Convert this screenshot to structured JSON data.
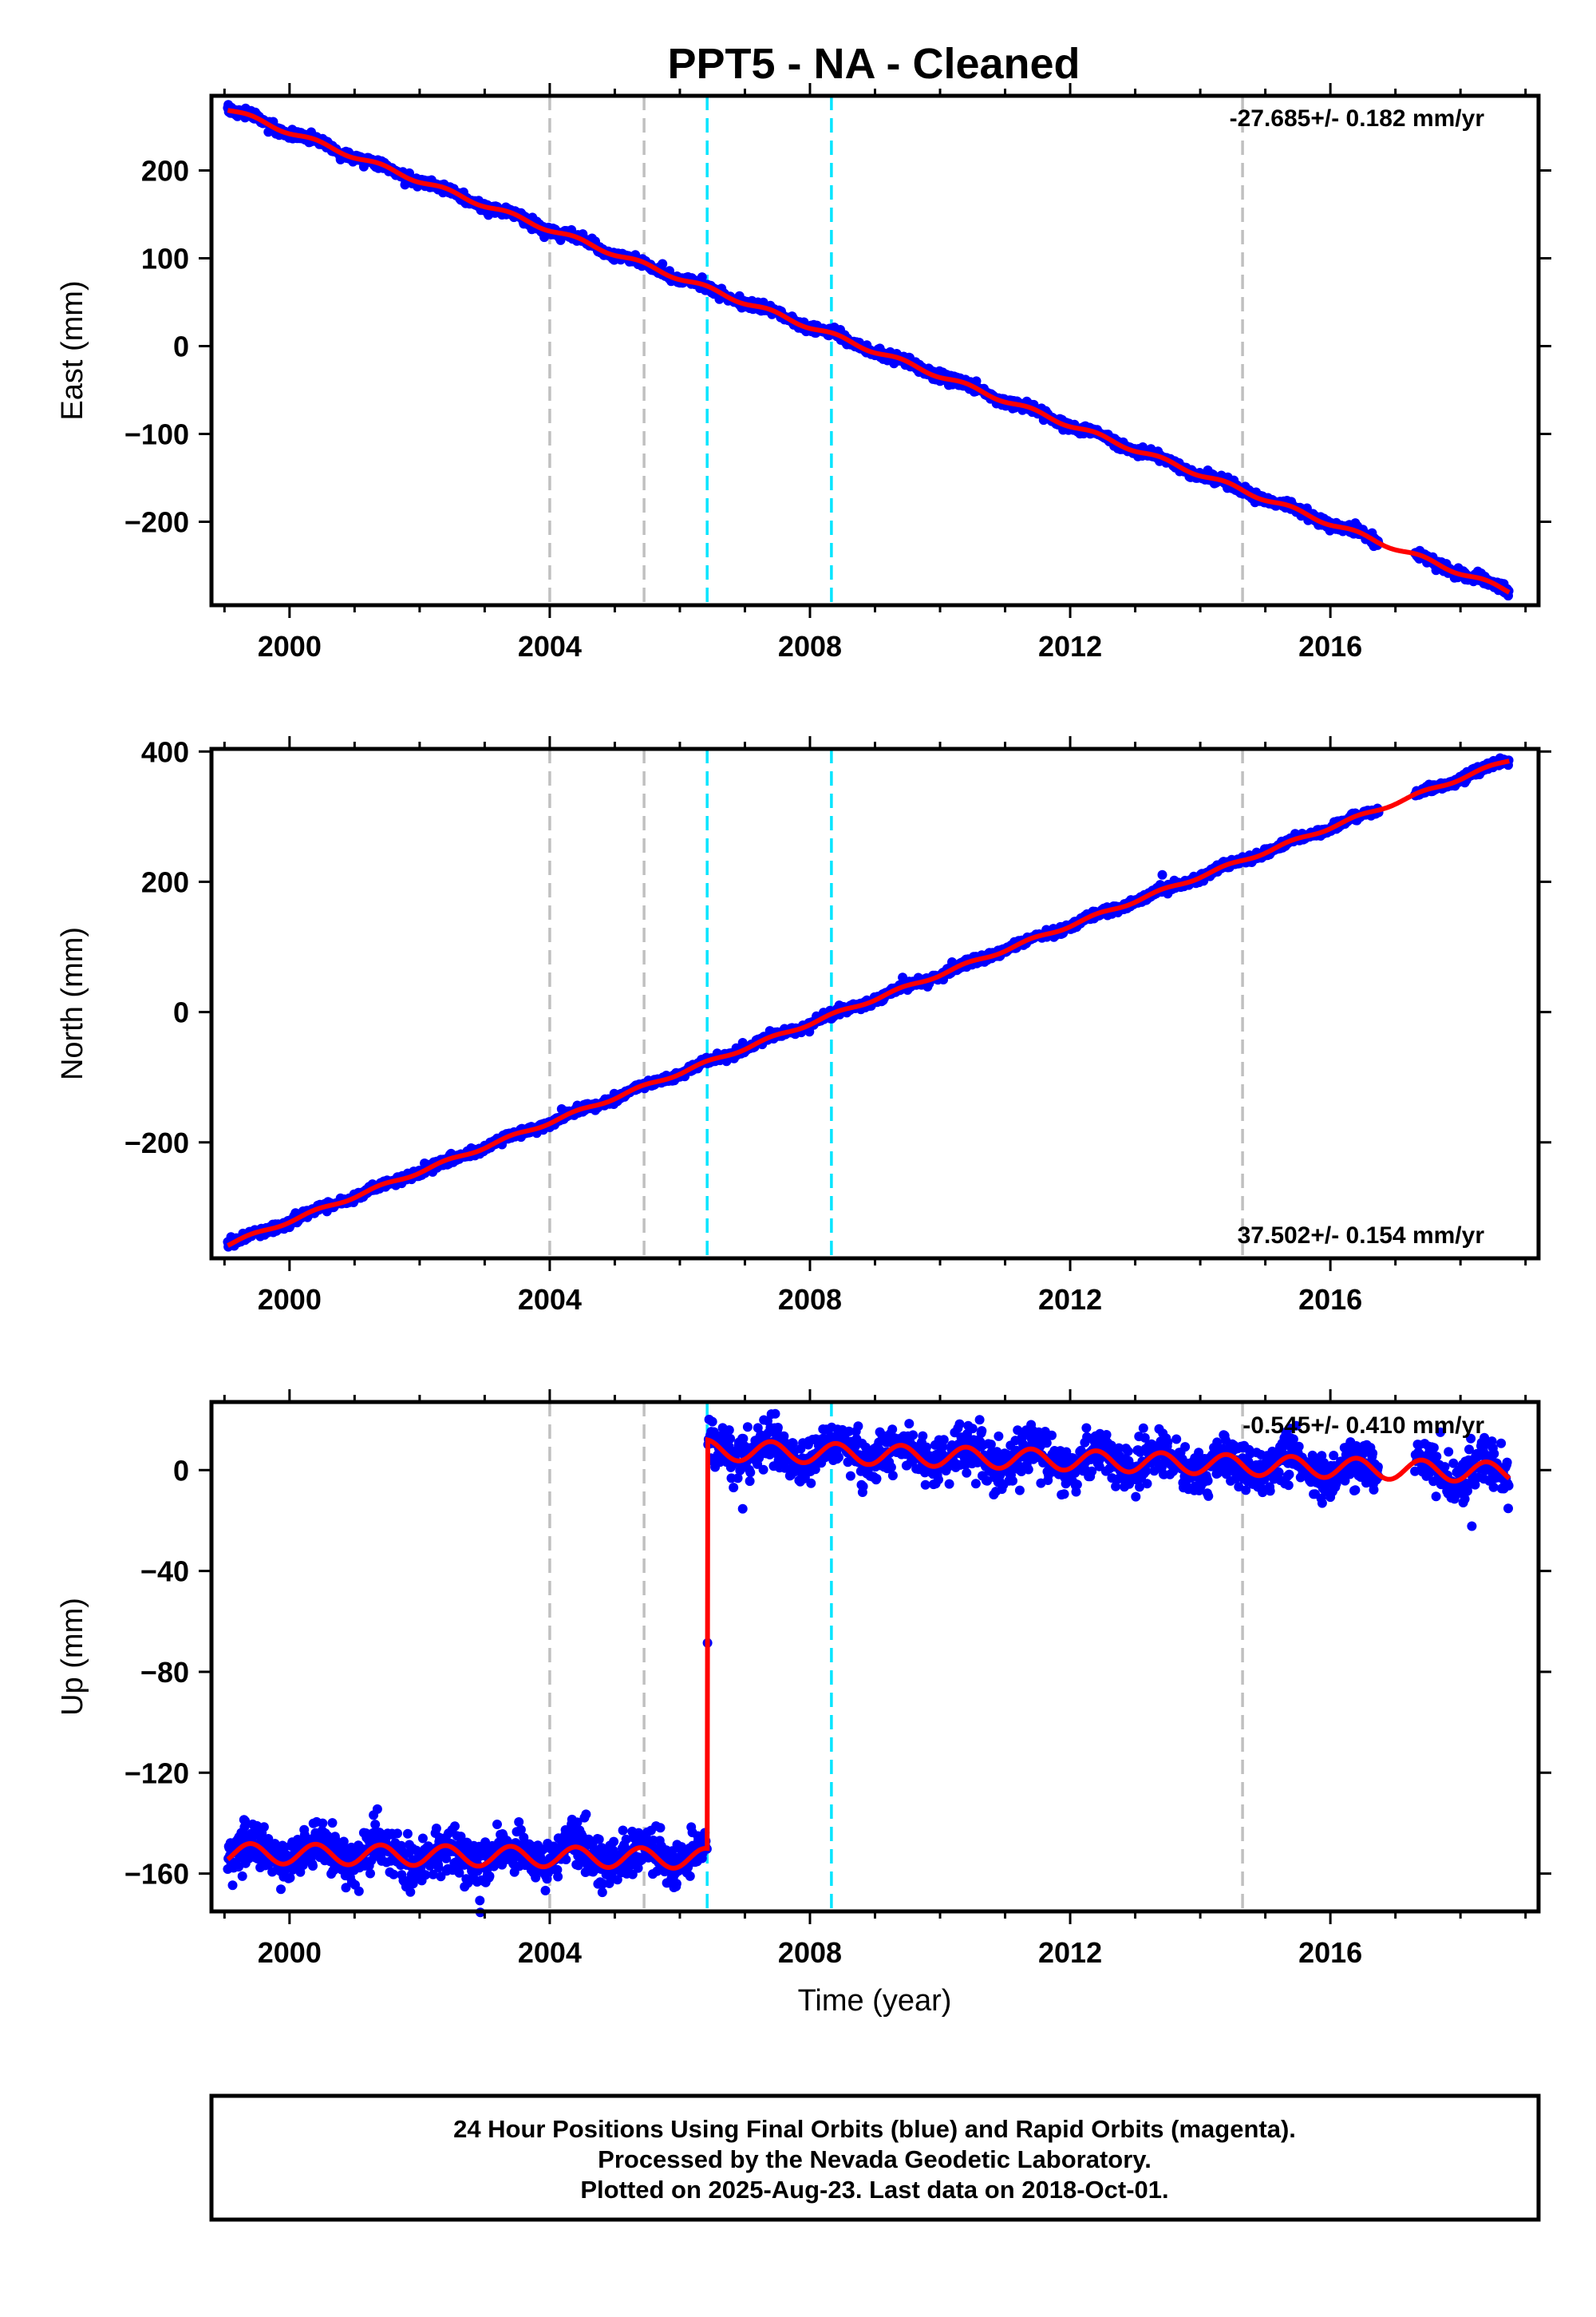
{
  "chart_data": {
    "type": "scatter",
    "title": "PPT5  - NA - Cleaned",
    "xlabel": "Time (year)",
    "xlim": [
      1998.8,
      2019.2
    ],
    "xticks": [
      2000,
      2004,
      2008,
      2012,
      2016
    ],
    "colors": {
      "data": "#0000ff",
      "model": "#ff0000",
      "equipment_change": "#c0c0c0",
      "earthquake": "#00e5ff"
    },
    "vertical_lines": {
      "equipment_change": [
        2004.0,
        2005.45,
        2014.65
      ],
      "earthquake": [
        2006.42,
        2008.33
      ]
    },
    "data_start": 1999.05,
    "data_end": 2018.75,
    "gap": [
      2016.75,
      2017.3
    ],
    "panels": [
      {
        "name": "east",
        "ylabel": "East (mm)",
        "ylim": [
          -295,
          285
        ],
        "yticks": [
          200,
          100,
          0,
          -100,
          -200
        ],
        "ytick_labels": [
          "200",
          "100",
          "0",
          "−100",
          "−200"
        ],
        "rate_label": "-27.685+/- 0.182 mm/yr",
        "rate_position": "top-right",
        "trend": [
          [
            1999.05,
            270
          ],
          [
            2008.33,
            13
          ],
          [
            2018.75,
            -279
          ]
        ],
        "offsets": [],
        "seasonal_amplitude": 2.5,
        "scatter_sigma": 2.5
      },
      {
        "name": "north",
        "ylabel": "North (mm)",
        "ylim": [
          -378,
          404
        ],
        "yticks": [
          400,
          200,
          0,
          -200
        ],
        "ytick_labels": [
          "400",
          "200",
          "0",
          "−200"
        ],
        "rate_label": "37.502+/- 0.154 mm/yr",
        "rate_position": "bottom-right",
        "trend": [
          [
            1999.05,
            -357
          ],
          [
            2008.33,
            -5
          ],
          [
            2018.75,
            387
          ]
        ],
        "offsets": [],
        "seasonal_amplitude": 2.5,
        "scatter_sigma": 3
      },
      {
        "name": "up",
        "ylabel": "Up (mm)",
        "ylim": [
          -175,
          27
        ],
        "yticks": [
          0,
          -40,
          -80,
          -120,
          -160
        ],
        "ytick_labels": [
          "0",
          "−40",
          "−80",
          "−120",
          "−160"
        ],
        "rate_label": "-0.545+/- 0.410 mm/yr",
        "rate_position": "top-right",
        "trend": [
          [
            1999.05,
            -152
          ],
          [
            2006.42,
            -154
          ],
          [
            2006.43,
            8
          ],
          [
            2018.75,
            -1
          ]
        ],
        "offsets": [
          {
            "year": 2006.42,
            "size": 162
          }
        ],
        "seasonal_amplitude": 4,
        "scatter_sigma": 4.5
      }
    ]
  },
  "footer": {
    "line1": "24 Hour Positions Using Final Orbits (blue) and Rapid Orbits (magenta).",
    "line2": "Processed by the Nevada Geodetic Laboratory.",
    "line3": "Plotted on 2025-Aug-23. Last data on 2018-Oct-01."
  }
}
